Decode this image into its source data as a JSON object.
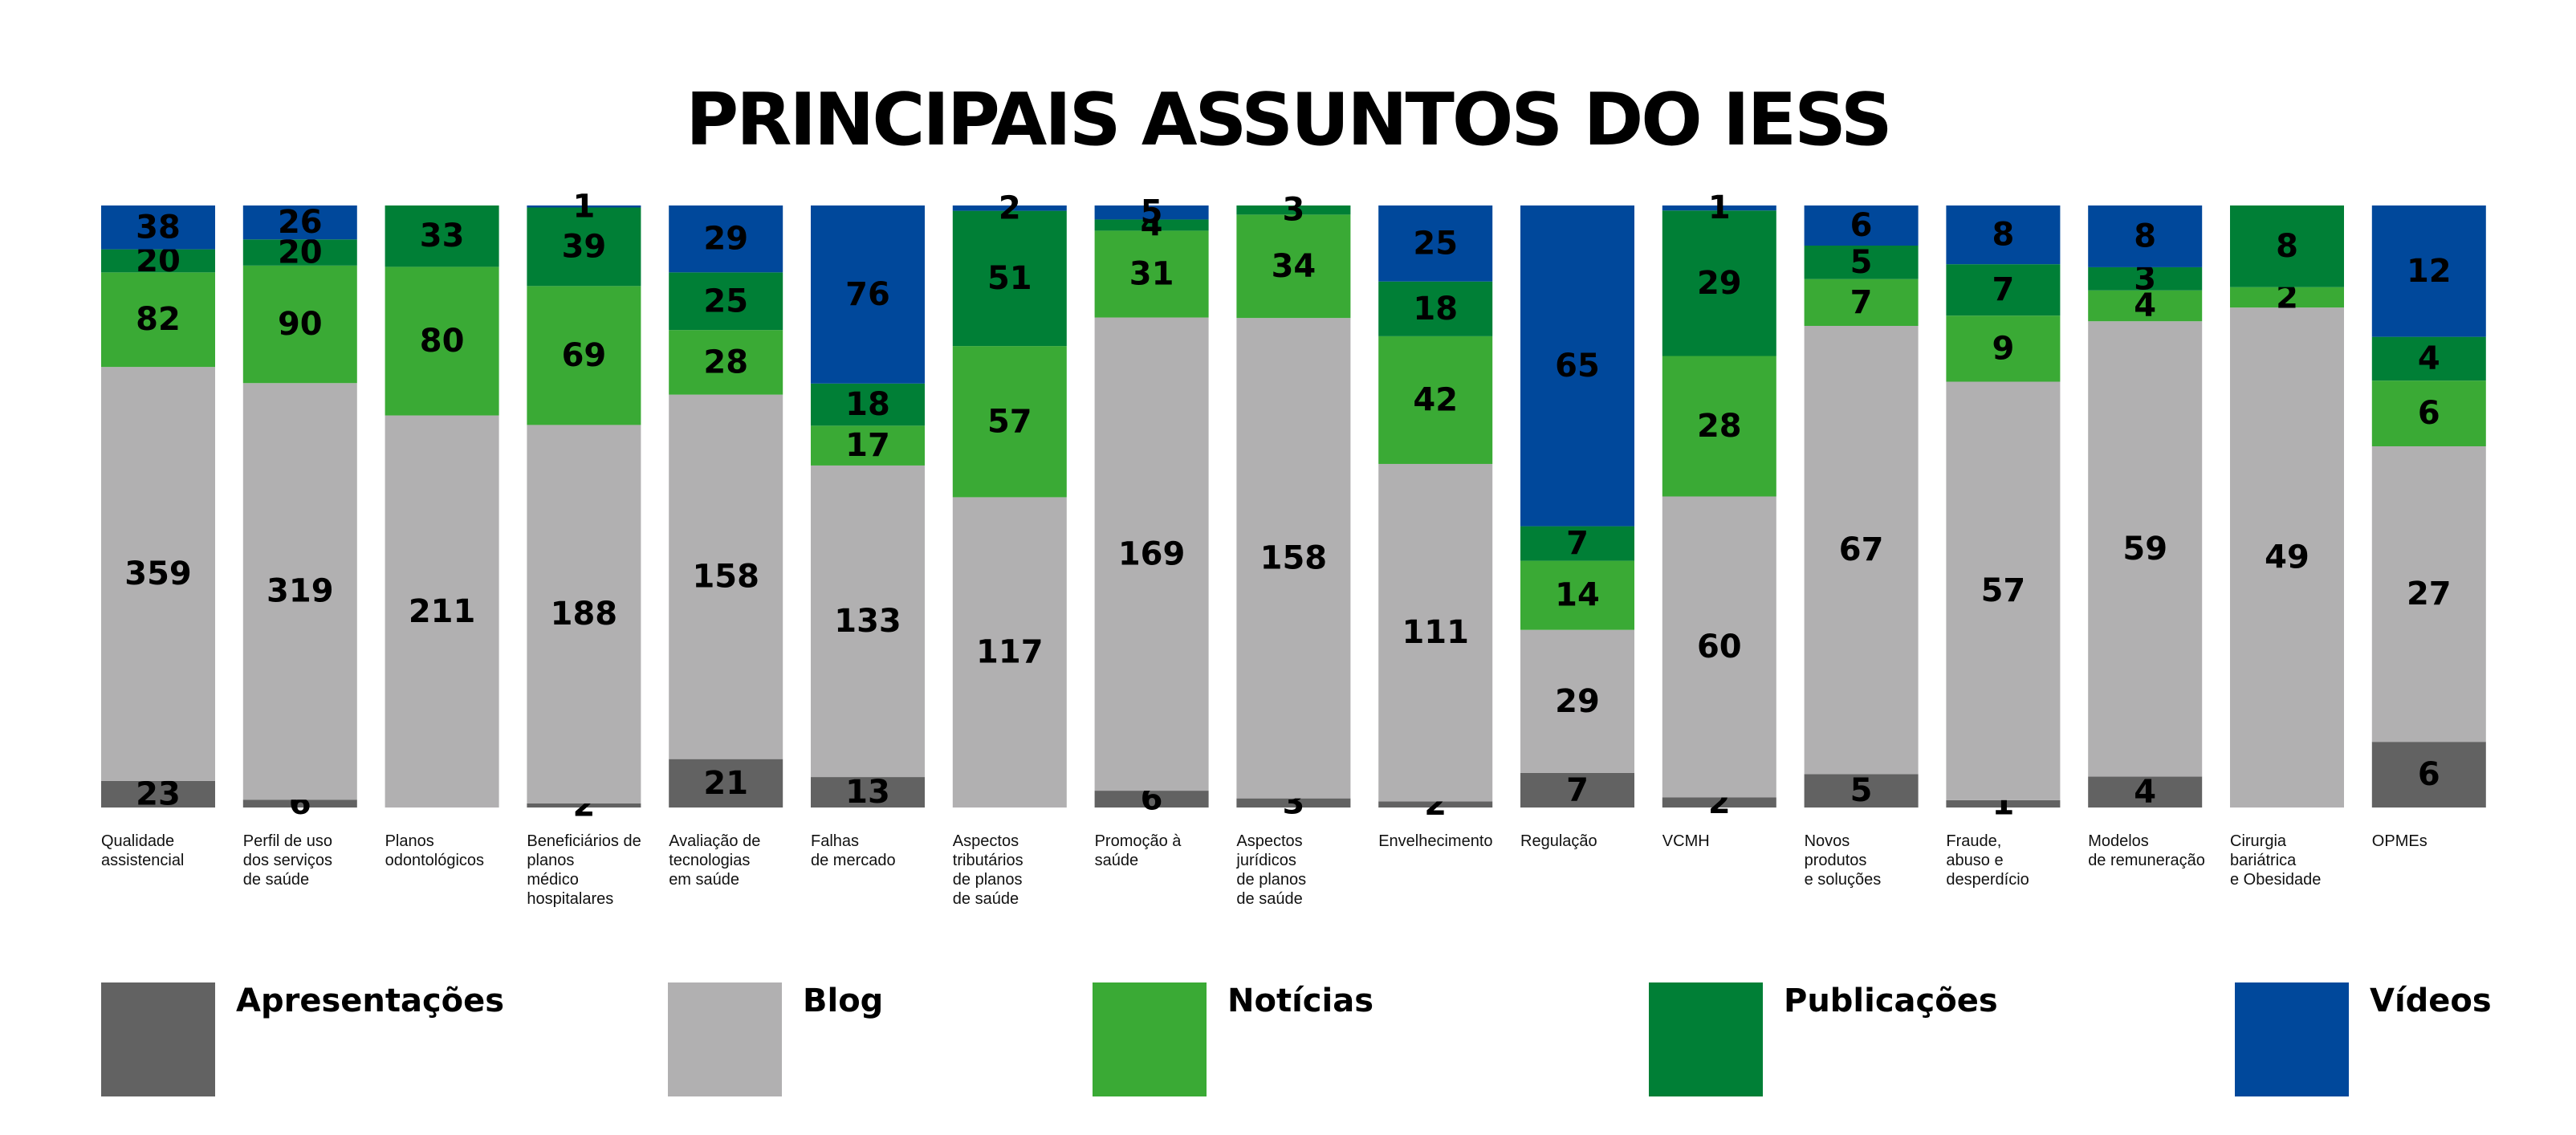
{
  "title": "PRINCIPAIS ASSUNTOS DO IESS",
  "chart_data": {
    "type": "bar",
    "stacked": true,
    "normalized_percent": true,
    "categories": [
      "Qualidade\nassistencial",
      "Perfil de uso\ndos serviços\nde saúde",
      "Planos\nodontológicos",
      "Beneficiários de\nplanos\nmédico\nhospitalares",
      "Avaliação de\ntecnologias\nem saúde",
      "Falhas\nde mercado",
      "Aspectos\ntributários\nde planos\nde saúde",
      "Promoção à\nsaúde",
      "Aspectos\njurídicos\nde planos\nde saúde",
      "Envelhecimento",
      "Regulação",
      "VCMH",
      "Novos\nprodutos\ne soluções",
      "Fraude,\nabuso e\ndesperdício",
      "Modelos\nde remuneração",
      "Cirurgia\nbariátrica\ne Obesidade",
      "OPMEs"
    ],
    "series": [
      {
        "name": "Apresentações",
        "color": "#626262",
        "values": [
          23,
          6,
          0,
          2,
          21,
          13,
          0,
          6,
          3,
          2,
          7,
          2,
          5,
          1,
          4,
          0,
          6
        ]
      },
      {
        "name": "Blog",
        "color": "#b1b0b1",
        "values": [
          359,
          319,
          211,
          188,
          158,
          133,
          117,
          169,
          158,
          111,
          29,
          60,
          67,
          57,
          59,
          49,
          27
        ]
      },
      {
        "name": "Notícias",
        "color": "#3aaa35",
        "values": [
          82,
          90,
          80,
          69,
          28,
          17,
          57,
          31,
          34,
          42,
          14,
          28,
          7,
          9,
          4,
          2,
          6
        ]
      },
      {
        "name": "Publicações",
        "color": "#007f36",
        "values": [
          20,
          20,
          33,
          39,
          25,
          18,
          51,
          4,
          3,
          18,
          7,
          29,
          5,
          7,
          3,
          8,
          4
        ]
      },
      {
        "name": "Vídeos",
        "color": "#00489b",
        "values": [
          38,
          26,
          0,
          1,
          29,
          76,
          2,
          5,
          0,
          25,
          65,
          1,
          6,
          8,
          8,
          0,
          12
        ]
      }
    ],
    "legend_position": "bottom",
    "grid": false
  }
}
